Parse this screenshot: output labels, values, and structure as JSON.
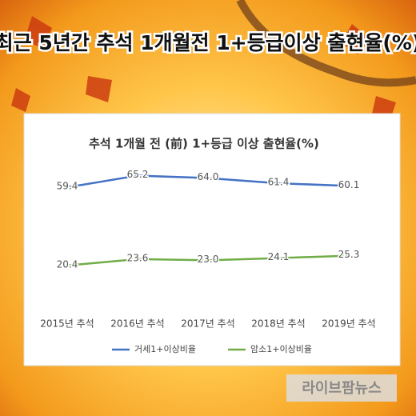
{
  "title": "최근 5년간 추석 1개월전 1+등급이상 출현율(%)",
  "chart_data": {
    "type": "line",
    "title": "추석 1개월 전 (前) 1+등급 이상 출현율(%)",
    "categories": [
      "2015년 추석",
      "2016년 추석",
      "2017년 추석",
      "2018년 추석",
      "2019년 추석"
    ],
    "series": [
      {
        "name": "거세1+이상비율",
        "color": "#4472c4",
        "values": [
          59.4,
          65.2,
          64.0,
          61.4,
          60.1
        ],
        "value_labels": [
          "59.4",
          "65.2",
          "64.0",
          "61.4",
          "60.1"
        ]
      },
      {
        "name": "암소1+이상비율",
        "color": "#70ad47",
        "values": [
          20.4,
          23.6,
          23.0,
          24.1,
          25.3
        ],
        "value_labels": [
          "20.4",
          "23.6",
          "23.0",
          "24.1",
          "25.3"
        ]
      }
    ],
    "ylim": [
      0,
      75
    ],
    "legend": "bottom"
  },
  "watermark": "라이브팜뉴스"
}
